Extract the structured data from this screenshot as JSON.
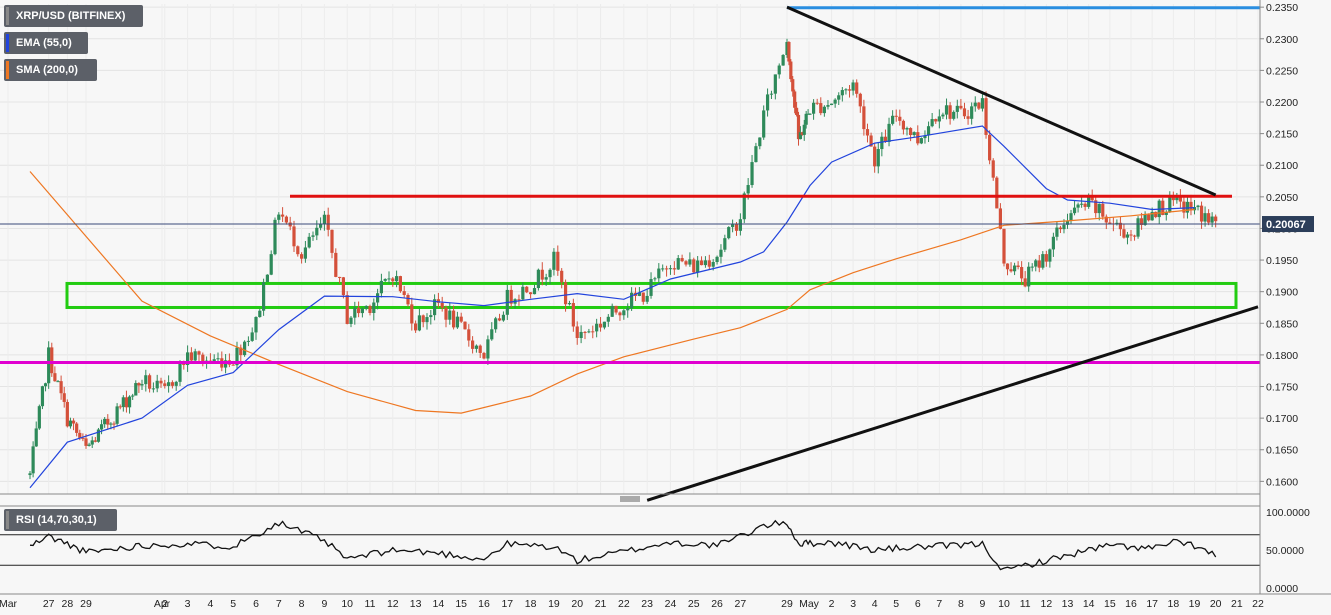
{
  "legend": {
    "symbol": "XRP/USD (BITFINEX)",
    "ema": "EMA (55,0)",
    "sma": "SMA (200,0)",
    "rsi": "RSI (14,70,30,1)"
  },
  "colors": {
    "up": "#2e8a5a",
    "down": "#d4503a",
    "ema": "#2244dd",
    "sma": "#ee7722",
    "resistance": "#e01010",
    "support": "#e000d0",
    "top": "#2a8ee0",
    "zone": "#22cc11",
    "trend": "#111111"
  },
  "chart_data": {
    "type": "line",
    "title": "XRP/USD (BITFINEX)",
    "x_labels": [
      "Mar",
      "27",
      "28",
      "29",
      "Apr",
      "2",
      "3",
      "4",
      "5",
      "6",
      "7",
      "8",
      "9",
      "10",
      "11",
      "12",
      "13",
      "14",
      "15",
      "16",
      "17",
      "18",
      "19",
      "20",
      "21",
      "22",
      "23",
      "24",
      "25",
      "26",
      "27",
      "29",
      "May",
      "2",
      "3",
      "4",
      "5",
      "6",
      "7",
      "8",
      "9",
      "10",
      "11",
      "12",
      "13",
      "14",
      "15",
      "16",
      "17",
      "18",
      "19",
      "20",
      "21",
      "22"
    ],
    "y_ticks": [
      "0.2350",
      "0.2300",
      "0.2250",
      "0.2200",
      "0.2150",
      "0.2100",
      "0.2050",
      "0.2000",
      "0.1950",
      "0.1900",
      "0.1850",
      "0.1800",
      "0.1750",
      "0.1700",
      "0.1650",
      "0.1600"
    ],
    "ylim": [
      0.158,
      0.2355
    ],
    "last_price": "0.20067",
    "horizontal_levels": {
      "resistance": 0.2051,
      "support": 0.1788,
      "top": 0.2349,
      "current": 0.2007
    },
    "range_zone": [
      0.1875,
      0.1913
    ],
    "trendlines": [
      {
        "name": "descending",
        "points": [
          [
            "Apr 29",
            0.235
          ],
          [
            "May 20",
            0.2053
          ]
        ]
      },
      {
        "name": "ascending",
        "points": [
          [
            "Apr 23",
            0.157
          ],
          [
            "May 22",
            0.1876
          ]
        ]
      }
    ],
    "series": [
      {
        "name": "EMA (55,0)",
        "points": [
          [
            "Mar 26",
            0.159
          ],
          [
            "Mar 28",
            0.1662
          ],
          [
            "Apr 1",
            0.17
          ],
          [
            "Apr 3",
            0.1752
          ],
          [
            "Apr 5",
            0.1772
          ],
          [
            "Apr 7",
            0.184
          ],
          [
            "Apr 9",
            0.1893
          ],
          [
            "Apr 12",
            0.1892
          ],
          [
            "Apr 14",
            0.1884
          ],
          [
            "Apr 16",
            0.1878
          ],
          [
            "Apr 18",
            0.1888
          ],
          [
            "Apr 20",
            0.1897
          ],
          [
            "Apr 22",
            0.1888
          ],
          [
            "Apr 24",
            0.192
          ],
          [
            "Apr 27",
            0.1947
          ],
          [
            "Apr 28",
            0.1963
          ],
          [
            "Apr 29",
            0.201
          ],
          [
            "May 1",
            0.2068
          ],
          [
            "May 2",
            0.2105
          ],
          [
            "May 4",
            0.2135
          ],
          [
            "May 6",
            0.2145
          ],
          [
            "May 9",
            0.2162
          ],
          [
            "May 10",
            0.213
          ],
          [
            "May 12",
            0.2063
          ],
          [
            "May 13",
            0.2045
          ],
          [
            "May 15",
            0.204
          ],
          [
            "May 17",
            0.203
          ],
          [
            "May 19",
            0.2033
          ]
        ]
      },
      {
        "name": "SMA (200,0)",
        "points": [
          [
            "Mar 26",
            0.209
          ],
          [
            "Apr 1",
            0.1885
          ],
          [
            "Apr 4",
            0.183
          ],
          [
            "Apr 7",
            0.1785
          ],
          [
            "Apr 10",
            0.1742
          ],
          [
            "Apr 13",
            0.1712
          ],
          [
            "Apr 15",
            0.1708
          ],
          [
            "Apr 18",
            0.1735
          ],
          [
            "Apr 20",
            0.177
          ],
          [
            "Apr 22",
            0.1797
          ],
          [
            "Apr 25",
            0.1825
          ],
          [
            "Apr 27",
            0.1843
          ],
          [
            "Apr 29",
            0.1872
          ],
          [
            "May 1",
            0.1903
          ],
          [
            "May 3",
            0.193
          ],
          [
            "May 5",
            0.1952
          ],
          [
            "May 8",
            0.1982
          ],
          [
            "May 10",
            0.2005
          ],
          [
            "May 13",
            0.2012
          ],
          [
            "May 16",
            0.202
          ],
          [
            "May 19",
            0.203
          ]
        ]
      },
      {
        "name": "close",
        "points": [
          [
            "Mar 26",
            0.161
          ],
          [
            "Mar 27",
            0.18
          ],
          [
            "Mar 28",
            0.17
          ],
          [
            "Mar 29",
            0.165
          ],
          [
            "Apr 1",
            0.176
          ],
          [
            "Apr 2",
            0.174
          ],
          [
            "Apr 3",
            0.18
          ],
          [
            "Apr 4",
            0.179
          ],
          [
            "Apr 5",
            0.1795
          ],
          [
            "Apr 6",
            0.185
          ],
          [
            "Apr 7",
            0.203
          ],
          [
            "Apr 8",
            0.196
          ],
          [
            "Apr 9",
            0.201
          ],
          [
            "Apr 10",
            0.186
          ],
          [
            "Apr 11",
            0.188
          ],
          [
            "Apr 12",
            0.193
          ],
          [
            "Apr 13",
            0.185
          ],
          [
            "Apr 14",
            0.188
          ],
          [
            "Apr 15",
            0.184
          ],
          [
            "Apr 16",
            0.18
          ],
          [
            "Apr 17",
            0.189
          ],
          [
            "Apr 18",
            0.191
          ],
          [
            "Apr 19",
            0.195
          ],
          [
            "Apr 20",
            0.183
          ],
          [
            "Apr 21",
            0.185
          ],
          [
            "Apr 22",
            0.188
          ],
          [
            "Apr 23",
            0.19
          ],
          [
            "Apr 24",
            0.195
          ],
          [
            "Apr 25",
            0.194
          ],
          [
            "Apr 26",
            0.196
          ],
          [
            "Apr 27",
            0.202
          ],
          [
            "Apr 28",
            0.218
          ],
          [
            "Apr 29",
            0.23
          ],
          [
            "Apr 30",
            0.214
          ],
          [
            "May 1",
            0.219
          ],
          [
            "May 2",
            0.22
          ],
          [
            "May 3",
            0.223
          ],
          [
            "May 4",
            0.211
          ],
          [
            "May 5",
            0.218
          ],
          [
            "May 6",
            0.214
          ],
          [
            "May 7",
            0.219
          ],
          [
            "May 8",
            0.218
          ],
          [
            "May 9",
            0.22
          ],
          [
            "May 10",
            0.195
          ],
          [
            "May 11",
            0.192
          ],
          [
            "May 12",
            0.196
          ],
          [
            "May 13",
            0.202
          ],
          [
            "May 14",
            0.204
          ],
          [
            "May 15",
            0.201
          ],
          [
            "May 16",
            0.199
          ],
          [
            "May 17",
            0.203
          ],
          [
            "May 18",
            0.204
          ],
          [
            "May 19",
            0.203
          ],
          [
            "May 20",
            0.2007
          ]
        ]
      },
      {
        "name": "RSI (14,70,30,1)",
        "points": [
          [
            "Mar 26",
            55
          ],
          [
            "Mar 27",
            68
          ],
          [
            "Mar 28",
            58
          ],
          [
            "Mar 29",
            47
          ],
          [
            "Apr 1",
            56
          ],
          [
            "Apr 3",
            58
          ],
          [
            "Apr 5",
            55
          ],
          [
            "Apr 7",
            86
          ],
          [
            "Apr 9",
            62
          ],
          [
            "Apr 10",
            38
          ],
          [
            "Apr 12",
            50
          ],
          [
            "Apr 14",
            46
          ],
          [
            "Apr 16",
            38
          ],
          [
            "Apr 17",
            58
          ],
          [
            "Apr 19",
            54
          ],
          [
            "Apr 20",
            36
          ],
          [
            "Apr 22",
            48
          ],
          [
            "Apr 24",
            60
          ],
          [
            "Apr 26",
            56
          ],
          [
            "Apr 27",
            68
          ],
          [
            "Apr 28",
            82
          ],
          [
            "Apr 29",
            86
          ],
          [
            "Apr 30",
            58
          ],
          [
            "May 2",
            60
          ],
          [
            "May 4",
            50
          ],
          [
            "May 6",
            54
          ],
          [
            "May 8",
            56
          ],
          [
            "May 9",
            58
          ],
          [
            "May 10",
            22
          ],
          [
            "May 11",
            30
          ],
          [
            "May 12",
            36
          ],
          [
            "May 14",
            50
          ],
          [
            "May 15",
            56
          ],
          [
            "May 17",
            52
          ],
          [
            "May 18",
            60
          ],
          [
            "May 19",
            56
          ],
          [
            "May 20",
            42
          ]
        ]
      }
    ],
    "rsi": {
      "ticks": [
        "100.0000",
        "50.0000",
        "0.0000"
      ],
      "upper": 70,
      "lower": 30
    }
  }
}
